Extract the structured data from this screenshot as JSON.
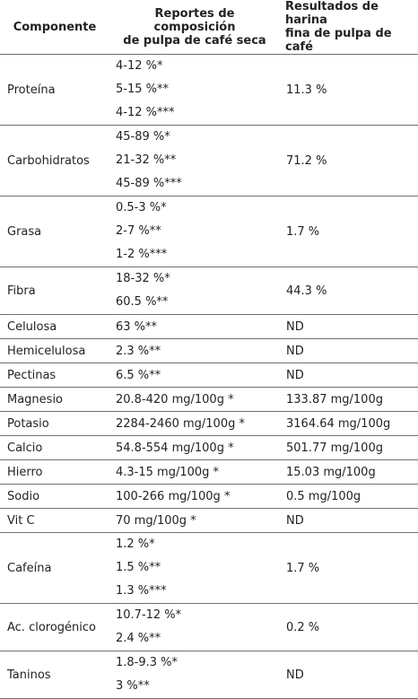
{
  "table": {
    "headers": {
      "component": "Componente",
      "reports_line1": "Reportes de composición",
      "reports_line2": "de pulpa de café seca",
      "results_line1": "Resultados de harina",
      "results_line2": "fina de pulpa de café"
    },
    "rows": [
      {
        "name": "Proteína",
        "reports": [
          "4-12 %*",
          "5-15 %**",
          "4-12 %***"
        ],
        "result": "11.3 %"
      },
      {
        "name": "Carbohidratos",
        "reports": [
          "45-89 %*",
          "21-32 %**",
          "45-89 %***"
        ],
        "result": "71.2 %"
      },
      {
        "name": "Grasa",
        "reports": [
          "0.5-3 %*",
          "2-7 %**",
          "1-2 %***"
        ],
        "result": "1.7 %"
      },
      {
        "name": "Fibra",
        "reports": [
          "18-32 %*",
          "60.5 %**"
        ],
        "result": "44.3 %"
      },
      {
        "name": "Celulosa",
        "reports": [
          "63 %**"
        ],
        "result": "ND"
      },
      {
        "name": "Hemicelulosa",
        "reports": [
          "2.3 %**"
        ],
        "result": "ND"
      },
      {
        "name": "Pectinas",
        "reports": [
          "6.5 %**"
        ],
        "result": "ND"
      },
      {
        "name": "Magnesio",
        "reports": [
          "20.8-420 mg/100g *"
        ],
        "result": "133.87 mg/100g"
      },
      {
        "name": "Potasio",
        "reports": [
          "2284-2460 mg/100g *"
        ],
        "result": "3164.64 mg/100g"
      },
      {
        "name": "Calcio",
        "reports": [
          "54.8-554 mg/100g *"
        ],
        "result": "501.77 mg/100g"
      },
      {
        "name": "Hierro",
        "reports": [
          "4.3-15 mg/100g *"
        ],
        "result": "15.03 mg/100g"
      },
      {
        "name": "Sodio",
        "reports": [
          "100-266 mg/100g *"
        ],
        "result": "0.5 mg/100g"
      },
      {
        "name": "Vit C",
        "reports": [
          "70 mg/100g *"
        ],
        "result": "ND"
      },
      {
        "name": "Cafeína",
        "reports": [
          "1.2 %*",
          "1.5 %**",
          "1.3 %***"
        ],
        "result": "1.7 %"
      },
      {
        "name": "Ac. clorogénico",
        "reports": [
          "10.7-12 %*",
          "2.4 %**"
        ],
        "result": "0.2 %"
      },
      {
        "name": "Taninos",
        "reports": [
          "1.8-9.3 %*",
          "3 %**"
        ],
        "result": "ND"
      }
    ]
  }
}
